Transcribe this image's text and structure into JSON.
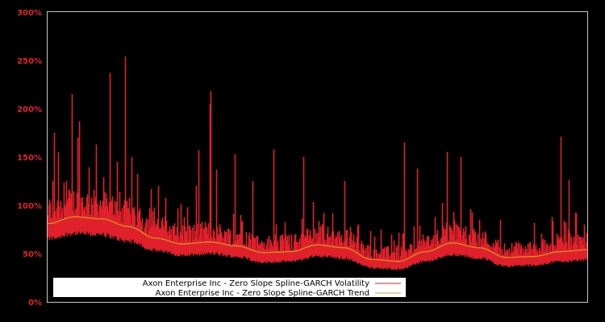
{
  "chart_data": {
    "type": "line",
    "title": "",
    "xlabel": "",
    "ylabel": "",
    "ylim": [
      0,
      300
    ],
    "yticks": [
      "0%",
      "50%",
      "100%",
      "150%",
      "200%",
      "250%",
      "300%"
    ],
    "grid": false,
    "legend_position": "lower-left inside",
    "background": "#000000",
    "series": [
      {
        "name": "Axon Enterprise Inc - Zero Slope Spline-GARCH Volatility",
        "color": "#e0202a",
        "description": "daily volatility, base hugging ~55-70% with frequent spikes",
        "peaks": [
          {
            "x_frac": 0.012,
            "value": 175
          },
          {
            "x_frac": 0.02,
            "value": 155
          },
          {
            "x_frac": 0.035,
            "value": 125
          },
          {
            "x_frac": 0.045,
            "value": 215
          },
          {
            "x_frac": 0.055,
            "value": 170
          },
          {
            "x_frac": 0.058,
            "value": 187
          },
          {
            "x_frac": 0.09,
            "value": 163
          },
          {
            "x_frac": 0.115,
            "value": 237
          },
          {
            "x_frac": 0.128,
            "value": 145
          },
          {
            "x_frac": 0.143,
            "value": 254
          },
          {
            "x_frac": 0.155,
            "value": 150
          },
          {
            "x_frac": 0.205,
            "value": 120
          },
          {
            "x_frac": 0.275,
            "value": 120
          },
          {
            "x_frac": 0.28,
            "value": 157
          },
          {
            "x_frac": 0.3,
            "value": 205
          },
          {
            "x_frac": 0.302,
            "value": 218
          },
          {
            "x_frac": 0.313,
            "value": 137
          },
          {
            "x_frac": 0.347,
            "value": 153
          },
          {
            "x_frac": 0.38,
            "value": 125
          },
          {
            "x_frac": 0.418,
            "value": 158
          },
          {
            "x_frac": 0.474,
            "value": 150
          },
          {
            "x_frac": 0.55,
            "value": 125
          },
          {
            "x_frac": 0.66,
            "value": 165
          },
          {
            "x_frac": 0.685,
            "value": 138
          },
          {
            "x_frac": 0.74,
            "value": 155
          },
          {
            "x_frac": 0.765,
            "value": 150
          },
          {
            "x_frac": 0.95,
            "value": 171
          },
          {
            "x_frac": 0.965,
            "value": 126
          }
        ]
      },
      {
        "name": "Axon Enterprise Inc - Zero Slope Spline-GARCH Trend",
        "color": "#d4a020",
        "points": [
          {
            "x_frac": 0.0,
            "value": 81
          },
          {
            "x_frac": 0.05,
            "value": 88
          },
          {
            "x_frac": 0.1,
            "value": 86
          },
          {
            "x_frac": 0.15,
            "value": 78
          },
          {
            "x_frac": 0.2,
            "value": 66
          },
          {
            "x_frac": 0.25,
            "value": 60
          },
          {
            "x_frac": 0.3,
            "value": 62
          },
          {
            "x_frac": 0.35,
            "value": 58
          },
          {
            "x_frac": 0.4,
            "value": 51
          },
          {
            "x_frac": 0.45,
            "value": 52
          },
          {
            "x_frac": 0.5,
            "value": 59
          },
          {
            "x_frac": 0.55,
            "value": 56
          },
          {
            "x_frac": 0.6,
            "value": 44
          },
          {
            "x_frac": 0.65,
            "value": 42
          },
          {
            "x_frac": 0.7,
            "value": 52
          },
          {
            "x_frac": 0.75,
            "value": 61
          },
          {
            "x_frac": 0.8,
            "value": 56
          },
          {
            "x_frac": 0.85,
            "value": 46
          },
          {
            "x_frac": 0.9,
            "value": 47
          },
          {
            "x_frac": 0.95,
            "value": 52
          },
          {
            "x_frac": 1.0,
            "value": 54
          }
        ]
      }
    ]
  },
  "legend": {
    "items": [
      {
        "label": "Axon Enterprise Inc - Zero Slope Spline-GARCH Volatility",
        "color": "#e0202a"
      },
      {
        "label": "Axon Enterprise Inc - Zero Slope Spline-GARCH Trend",
        "color": "#d4a020"
      }
    ]
  },
  "axis": {
    "ytick_labels": [
      "0%",
      "50%",
      "100%",
      "150%",
      "200%",
      "250%",
      "300%"
    ]
  }
}
